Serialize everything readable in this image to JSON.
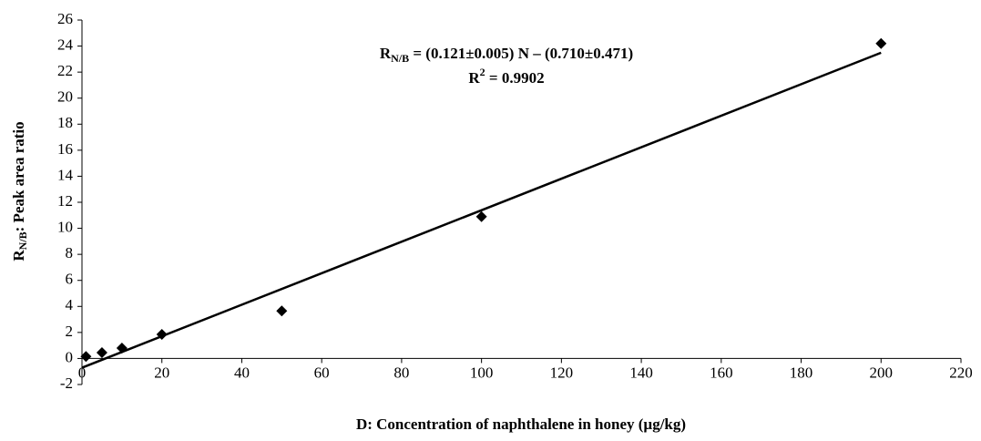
{
  "chart_data": {
    "type": "scatter",
    "x_label": "D: Concentration of naphthalene in honey (µg/kg)",
    "y_label": {
      "main": "R",
      "sub": "N/B",
      "rest": ": Peak area ratio"
    },
    "annotation": {
      "line1": {
        "main": "R",
        "sub": "N/B",
        "rest": " = (0.121±0.005) N – (0.710±0.471)"
      },
      "line2": {
        "main": "R",
        "sup": "2",
        "rest": " = 0.9902"
      }
    },
    "x": [
      1,
      5,
      10,
      20,
      50,
      100,
      200
    ],
    "values": [
      0.15,
      0.45,
      0.8,
      1.85,
      3.65,
      10.9,
      24.2
    ],
    "color": "#000000",
    "trendline": {
      "x": [
        0,
        200
      ],
      "values": [
        -0.71,
        23.49
      ],
      "color": "#000000"
    },
    "xlim": [
      0,
      220
    ],
    "xticks": [
      0,
      20,
      40,
      60,
      80,
      100,
      120,
      140,
      160,
      180,
      200,
      220
    ],
    "ylim": [
      -2,
      26
    ],
    "yticks": [
      -2,
      0,
      2,
      4,
      6,
      8,
      10,
      12,
      14,
      16,
      18,
      20,
      22,
      24,
      26
    ],
    "grid": false
  }
}
